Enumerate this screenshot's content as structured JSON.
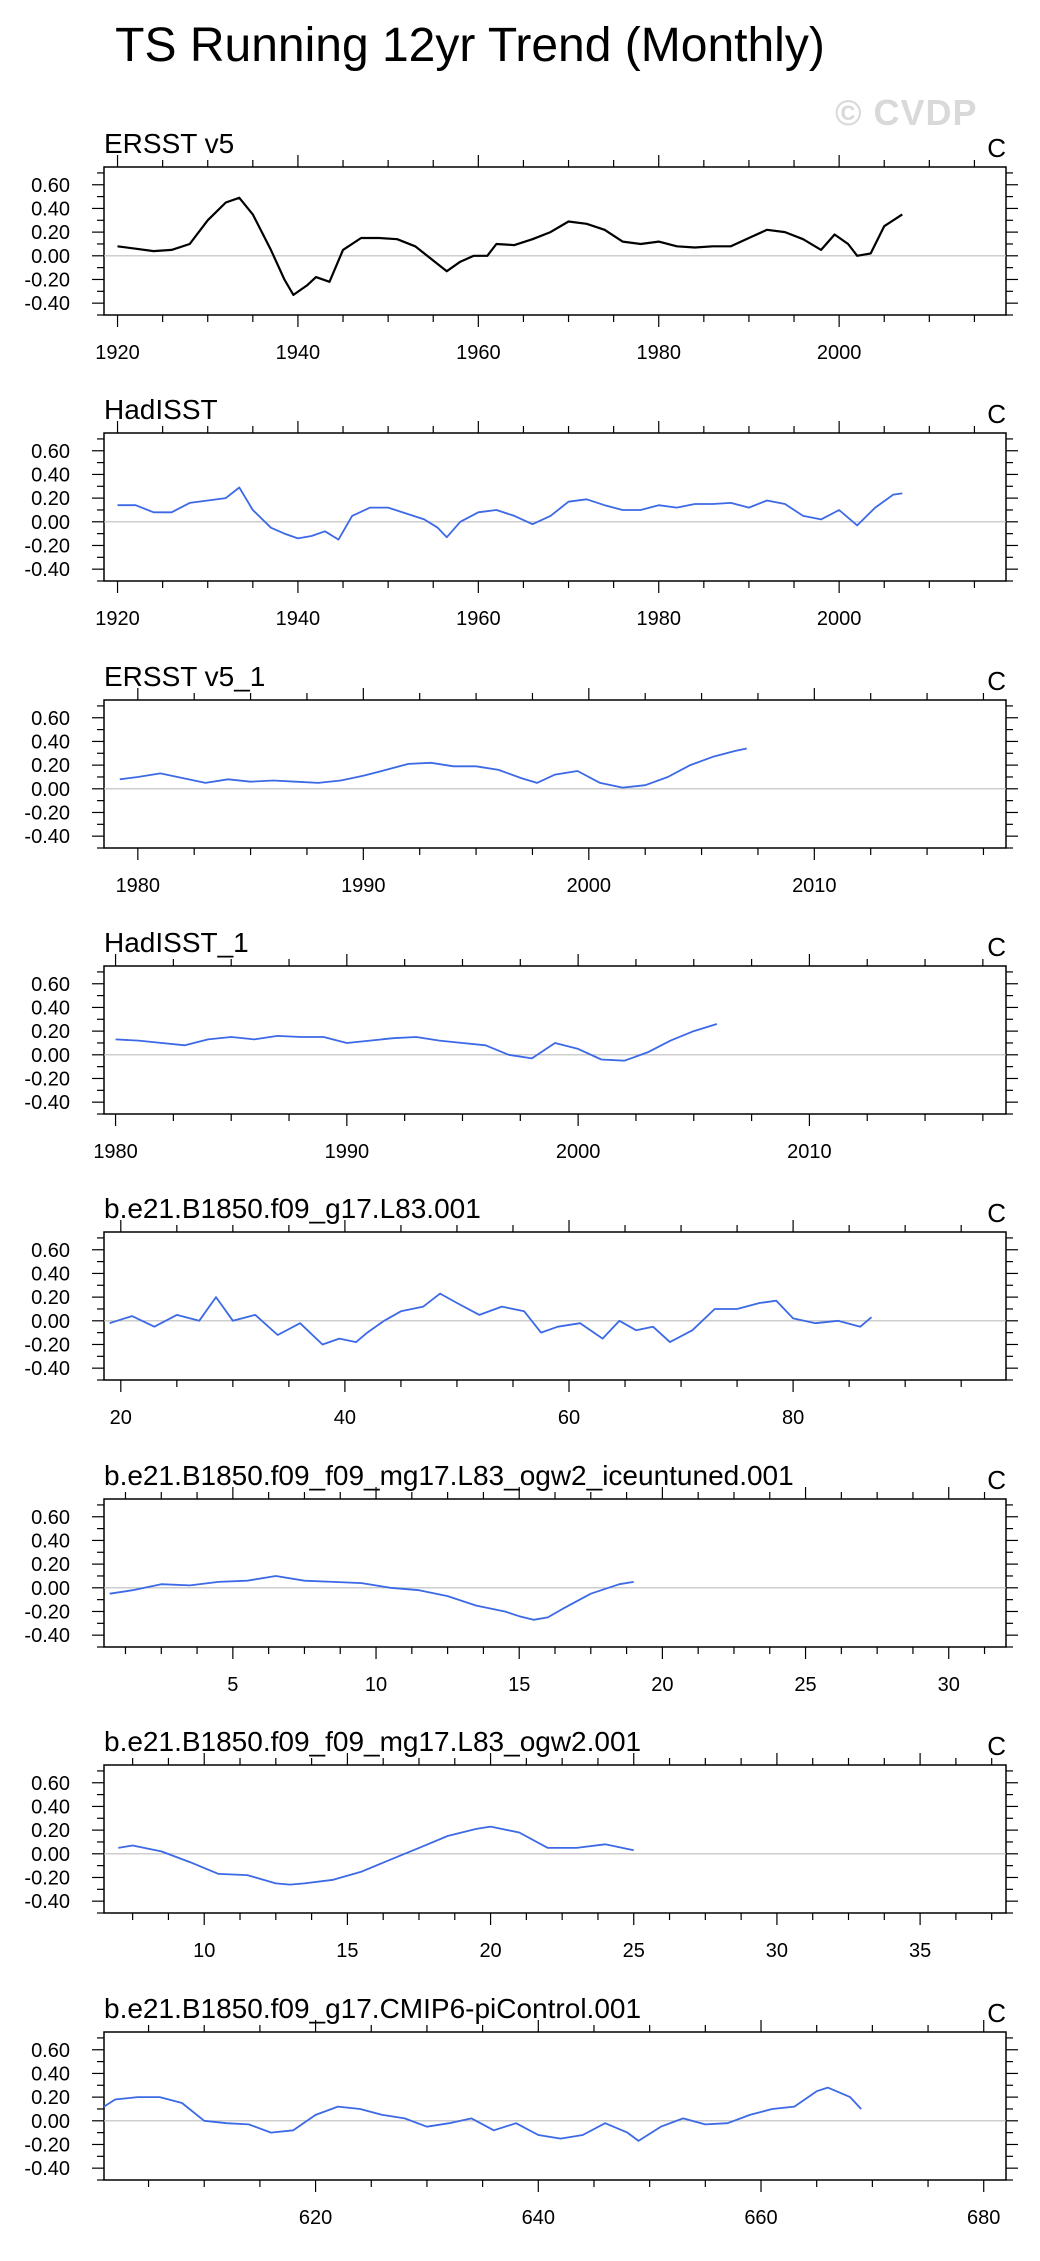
{
  "page": {
    "title": "TS Running 12yr Trend (Monthly)",
    "watermark": "© CVDP",
    "ticks": [
      "0.60",
      "0.40",
      "0.20",
      "0.00",
      "-0.20",
      "-0.40"
    ]
  },
  "chart_data": [
    {
      "type": "line",
      "title": "ERSST v5",
      "units": "C",
      "color": "#000000",
      "xlim": [
        1918.5,
        2018.5
      ],
      "ylim": [
        -0.5,
        0.75
      ],
      "xticks": [
        1920,
        1940,
        1960,
        1980,
        2000
      ],
      "x": [
        1920,
        1922,
        1924,
        1926,
        1928,
        1930,
        1932,
        1933.5,
        1935,
        1937,
        1938.5,
        1939.5,
        1941,
        1942,
        1943.5,
        1945,
        1947,
        1949,
        1951,
        1953,
        1955,
        1956.5,
        1958,
        1959.5,
        1961,
        1962,
        1964,
        1966,
        1968,
        1970,
        1972,
        1974,
        1976,
        1978,
        1980,
        1982,
        1984,
        1986,
        1988,
        1990,
        1992,
        1994,
        1996,
        1998,
        1999.5,
        2001,
        2002,
        2003.5,
        2005,
        2007
      ],
      "y": [
        0.08,
        0.06,
        0.04,
        0.05,
        0.1,
        0.3,
        0.45,
        0.49,
        0.35,
        0.05,
        -0.2,
        -0.33,
        -0.25,
        -0.18,
        -0.22,
        0.05,
        0.15,
        0.15,
        0.14,
        0.08,
        -0.04,
        -0.13,
        -0.05,
        0.0,
        0.0,
        0.1,
        0.09,
        0.14,
        0.2,
        0.29,
        0.27,
        0.22,
        0.12,
        0.1,
        0.12,
        0.08,
        0.07,
        0.08,
        0.08,
        0.15,
        0.22,
        0.2,
        0.14,
        0.05,
        0.18,
        0.1,
        0.0,
        0.02,
        0.25,
        0.35
      ]
    },
    {
      "type": "line",
      "title": "HadISST",
      "units": "C",
      "color": "#3c69e6",
      "xlim": [
        1918.5,
        2018.5
      ],
      "ylim": [
        -0.5,
        0.75
      ],
      "xticks": [
        1920,
        1940,
        1960,
        1980,
        2000
      ],
      "x": [
        1920,
        1922,
        1924,
        1926,
        1928,
        1930,
        1932,
        1933.5,
        1935,
        1937,
        1938.5,
        1940,
        1941.5,
        1943,
        1944.5,
        1946,
        1948,
        1950,
        1952,
        1954,
        1955.5,
        1956.5,
        1958,
        1960,
        1962,
        1964,
        1966,
        1968,
        1970,
        1972,
        1974,
        1976,
        1978,
        1980,
        1982,
        1984,
        1986,
        1988,
        1990,
        1992,
        1994,
        1996,
        1998,
        2000,
        2002,
        2004,
        2006,
        2007
      ],
      "y": [
        0.14,
        0.14,
        0.08,
        0.08,
        0.16,
        0.18,
        0.2,
        0.29,
        0.1,
        -0.05,
        -0.1,
        -0.14,
        -0.12,
        -0.08,
        -0.15,
        0.05,
        0.12,
        0.12,
        0.07,
        0.02,
        -0.05,
        -0.13,
        0.0,
        0.08,
        0.1,
        0.05,
        -0.02,
        0.05,
        0.17,
        0.19,
        0.14,
        0.1,
        0.1,
        0.14,
        0.12,
        0.15,
        0.15,
        0.16,
        0.12,
        0.18,
        0.15,
        0.05,
        0.02,
        0.1,
        -0.03,
        0.12,
        0.23,
        0.24
      ]
    },
    {
      "type": "line",
      "title": "ERSST v5_1",
      "units": "C",
      "color": "#3c69e6",
      "xlim": [
        1978.5,
        2018.5
      ],
      "ylim": [
        -0.5,
        0.75
      ],
      "xticks": [
        1980,
        1990,
        2000,
        2010
      ],
      "x": [
        1979.2,
        1980,
        1981,
        1982,
        1983,
        1984,
        1985,
        1986,
        1987,
        1988,
        1989,
        1990,
        1991,
        1992,
        1993,
        1994,
        1995,
        1996,
        1997,
        1997.7,
        1998.5,
        1999.5,
        2000.5,
        2001.5,
        2002.5,
        2003.5,
        2004.5,
        2005.5,
        2006.5,
        2007
      ],
      "y": [
        0.08,
        0.1,
        0.13,
        0.09,
        0.05,
        0.08,
        0.06,
        0.07,
        0.06,
        0.05,
        0.07,
        0.11,
        0.16,
        0.21,
        0.22,
        0.19,
        0.19,
        0.16,
        0.09,
        0.05,
        0.12,
        0.15,
        0.05,
        0.01,
        0.03,
        0.1,
        0.2,
        0.27,
        0.32,
        0.34
      ]
    },
    {
      "type": "line",
      "title": "HadISST_1",
      "units": "C",
      "color": "#3c69e6",
      "xlim": [
        1979.5,
        2018.5
      ],
      "ylim": [
        -0.5,
        0.75
      ],
      "xticks": [
        1980,
        1990,
        2000,
        2010
      ],
      "x": [
        1980,
        1981,
        1982,
        1983,
        1984,
        1985,
        1986,
        1987,
        1988,
        1989,
        1990,
        1991,
        1992,
        1993,
        1994,
        1995,
        1996,
        1997,
        1998,
        1999,
        2000,
        2001,
        2002,
        2003,
        2004,
        2005,
        2006
      ],
      "y": [
        0.13,
        0.12,
        0.1,
        0.08,
        0.13,
        0.15,
        0.13,
        0.16,
        0.15,
        0.15,
        0.1,
        0.12,
        0.14,
        0.15,
        0.12,
        0.1,
        0.08,
        0.0,
        -0.03,
        0.1,
        0.05,
        -0.04,
        -0.05,
        0.02,
        0.12,
        0.2,
        0.26
      ]
    },
    {
      "type": "line",
      "title": "b.e21.B1850.f09_g17.L83.001",
      "units": "C",
      "color": "#3c69e6",
      "xlim": [
        18.5,
        99
      ],
      "ylim": [
        -0.5,
        0.75
      ],
      "xticks": [
        20,
        40,
        60,
        80
      ],
      "x": [
        19,
        21,
        23,
        25,
        27,
        28.5,
        30,
        32,
        34,
        36,
        38,
        39.5,
        41,
        42,
        43.5,
        45,
        47,
        48.5,
        50,
        52,
        54,
        56,
        57.5,
        59,
        61,
        63,
        64.5,
        66,
        67.5,
        69,
        71,
        73,
        75,
        77,
        78.5,
        80,
        82,
        84,
        86,
        87
      ],
      "y": [
        -0.02,
        0.04,
        -0.05,
        0.05,
        0.0,
        0.2,
        0.0,
        0.05,
        -0.12,
        -0.02,
        -0.2,
        -0.15,
        -0.18,
        -0.1,
        0.0,
        0.08,
        0.12,
        0.23,
        0.15,
        0.05,
        0.12,
        0.08,
        -0.1,
        -0.05,
        -0.02,
        -0.15,
        0.0,
        -0.08,
        -0.05,
        -0.18,
        -0.08,
        0.1,
        0.1,
        0.15,
        0.17,
        0.02,
        -0.02,
        0.0,
        -0.05,
        0.03
      ]
    },
    {
      "type": "line",
      "title": "b.e21.B1850.f09_f09_mg17.L83_ogw2_iceuntuned.001",
      "units": "C",
      "color": "#3c69e6",
      "xlim": [
        0.5,
        32
      ],
      "ylim": [
        -0.5,
        0.75
      ],
      "xticks": [
        5,
        10,
        15,
        20,
        25,
        30
      ],
      "x": [
        0.7,
        1.5,
        2.5,
        3.5,
        4.5,
        5.5,
        6.5,
        7.5,
        8.5,
        9.5,
        10.5,
        11.5,
        12.5,
        13.5,
        14.5,
        15,
        15.5,
        16,
        16.5,
        17.5,
        18.5,
        19
      ],
      "y": [
        -0.05,
        -0.02,
        0.03,
        0.02,
        0.05,
        0.06,
        0.1,
        0.06,
        0.05,
        0.04,
        0.0,
        -0.02,
        -0.07,
        -0.15,
        -0.2,
        -0.24,
        -0.27,
        -0.25,
        -0.18,
        -0.05,
        0.03,
        0.05
      ]
    },
    {
      "type": "line",
      "title": "b.e21.B1850.f09_f09_mg17.L83_ogw2.001",
      "units": "C",
      "color": "#3c69e6",
      "xlim": [
        6.5,
        38
      ],
      "ylim": [
        -0.5,
        0.75
      ],
      "xticks": [
        10,
        15,
        20,
        25,
        30,
        35
      ],
      "x": [
        7,
        7.5,
        8.5,
        9.5,
        10.5,
        11.5,
        12.5,
        13,
        13.5,
        14.5,
        15.5,
        16.5,
        17.5,
        18.5,
        19.5,
        20,
        21,
        22,
        23,
        24,
        25
      ],
      "y": [
        0.05,
        0.07,
        0.02,
        -0.07,
        -0.17,
        -0.18,
        -0.25,
        -0.26,
        -0.25,
        -0.22,
        -0.15,
        -0.05,
        0.05,
        0.15,
        0.21,
        0.23,
        0.18,
        0.05,
        0.05,
        0.08,
        0.03
      ]
    },
    {
      "type": "line",
      "title": "b.e21.B1850.f09_g17.CMIP6-piControl.001",
      "units": "C",
      "color": "#3c69e6",
      "xlim": [
        601,
        682
      ],
      "ylim": [
        -0.5,
        0.75
      ],
      "xticks": [
        620,
        640,
        660,
        680
      ],
      "x": [
        601,
        602,
        604,
        606,
        608,
        610,
        612,
        614,
        616,
        618,
        620,
        622,
        624,
        626,
        628,
        630,
        632,
        634,
        636,
        638,
        640,
        642,
        644,
        646,
        648,
        649,
        651,
        653,
        655,
        657,
        659,
        661,
        663,
        665,
        666,
        668,
        669
      ],
      "y": [
        0.12,
        0.18,
        0.2,
        0.2,
        0.15,
        0.0,
        -0.02,
        -0.03,
        -0.1,
        -0.08,
        0.05,
        0.12,
        0.1,
        0.05,
        0.02,
        -0.05,
        -0.02,
        0.02,
        -0.08,
        -0.02,
        -0.12,
        -0.15,
        -0.12,
        -0.02,
        -0.1,
        -0.17,
        -0.05,
        0.02,
        -0.03,
        -0.02,
        0.05,
        0.1,
        0.12,
        0.25,
        0.28,
        0.2,
        0.1
      ]
    }
  ]
}
